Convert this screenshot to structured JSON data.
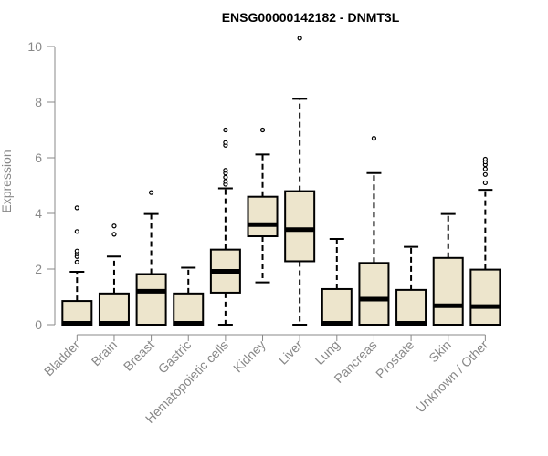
{
  "chart_data": {
    "type": "boxplot",
    "title": "ENSG00000142182 - DNMT3L",
    "xlabel": "",
    "ylabel": "Expression",
    "ylim": [
      0,
      10.3
    ],
    "yticks": [
      0,
      2,
      4,
      6,
      8,
      10
    ],
    "grid": false,
    "legend": "none",
    "colors": {
      "box_fill": "#ede5cc",
      "box_stroke": "#000000",
      "axis": "#888888",
      "label": "#888888"
    },
    "categories": [
      "Bladder",
      "Brain",
      "Breast",
      "Gastric",
      "Hematopoietic cells",
      "Kidney",
      "Liver",
      "Lung",
      "Pancreas",
      "Prostate",
      "Skin",
      "Unknown / Other"
    ],
    "boxes": [
      {
        "category": "Bladder",
        "min": 0,
        "q1": 0,
        "median": 0.05,
        "q3": 0.85,
        "max": 1.9,
        "outliers": [
          2.25,
          2.45,
          2.55,
          2.65,
          3.35,
          4.2
        ]
      },
      {
        "category": "Brain",
        "min": 0,
        "q1": 0,
        "median": 0.05,
        "q3": 1.12,
        "max": 2.45,
        "outliers": [
          3.25,
          3.55
        ]
      },
      {
        "category": "Breast",
        "min": 0,
        "q1": 0,
        "median": 1.2,
        "q3": 1.82,
        "max": 3.98,
        "outliers": [
          4.75
        ]
      },
      {
        "category": "Gastric",
        "min": 0,
        "q1": 0,
        "median": 0.05,
        "q3": 1.12,
        "max": 2.05,
        "outliers": []
      },
      {
        "category": "Hematopoietic cells",
        "min": 0,
        "q1": 1.15,
        "median": 1.92,
        "q3": 2.7,
        "max": 4.9,
        "outliers": [
          5.05,
          5.15,
          5.3,
          5.45,
          5.55,
          6.45,
          6.55,
          7.0
        ]
      },
      {
        "category": "Kidney",
        "min": 1.52,
        "q1": 3.18,
        "median": 3.6,
        "q3": 4.6,
        "max": 6.12,
        "outliers": [
          7.0
        ]
      },
      {
        "category": "Liver",
        "min": 0,
        "q1": 2.28,
        "median": 3.42,
        "q3": 4.8,
        "max": 8.12,
        "outliers": [
          10.3
        ]
      },
      {
        "category": "Lung",
        "min": 0,
        "q1": 0,
        "median": 0.05,
        "q3": 1.28,
        "max": 3.08,
        "outliers": []
      },
      {
        "category": "Pancreas",
        "min": 0,
        "q1": 0,
        "median": 0.92,
        "q3": 2.22,
        "max": 5.45,
        "outliers": [
          6.7
        ]
      },
      {
        "category": "Prostate",
        "min": 0,
        "q1": 0,
        "median": 0.05,
        "q3": 1.25,
        "max": 2.8,
        "outliers": []
      },
      {
        "category": "Skin",
        "min": 0,
        "q1": 0,
        "median": 0.68,
        "q3": 2.4,
        "max": 3.98,
        "outliers": []
      },
      {
        "category": "Unknown / Other",
        "min": 0,
        "q1": 0,
        "median": 0.65,
        "q3": 1.98,
        "max": 4.85,
        "outliers": [
          5.1,
          5.4,
          5.6,
          5.75,
          5.85,
          5.95
        ]
      }
    ]
  }
}
